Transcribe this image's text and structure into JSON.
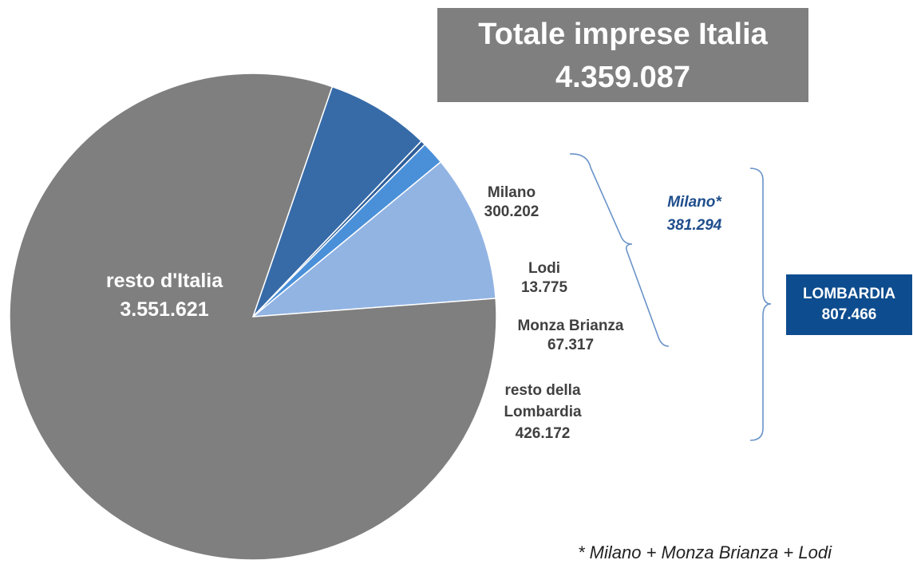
{
  "header": {
    "title_line1": "Totale imprese Italia",
    "title_line2": "4.359.087"
  },
  "chart_data": {
    "type": "pie",
    "start_angle_deg": 71,
    "direction": "clockwise",
    "slices": [
      {
        "label_lines": [
          "Milano",
          "300.202"
        ],
        "value": 300202,
        "color": "#376ba8"
      },
      {
        "label_lines": [
          "Lodi",
          "13.775"
        ],
        "value": 13775,
        "color": "#2e5f9a"
      },
      {
        "label_lines": [
          "Monza Brianza",
          "67.317"
        ],
        "value": 67317,
        "color": "#4a90d9"
      },
      {
        "label_lines": [
          "resto della",
          "Lombardia",
          "426.172"
        ],
        "value": 426172,
        "color": "#92b4e3"
      },
      {
        "label_lines": [
          "resto d'Italia",
          "3.551.621"
        ],
        "value": 3551621,
        "color": "#7f7f7f"
      }
    ]
  },
  "groups": {
    "milano_star": {
      "line1": "Milano*",
      "line2": "381.294"
    },
    "lombardia": {
      "line1": "LOMBARDIA",
      "line2": "807.466"
    }
  },
  "footnote": "* Milano + Monza Brianza + Lodi"
}
